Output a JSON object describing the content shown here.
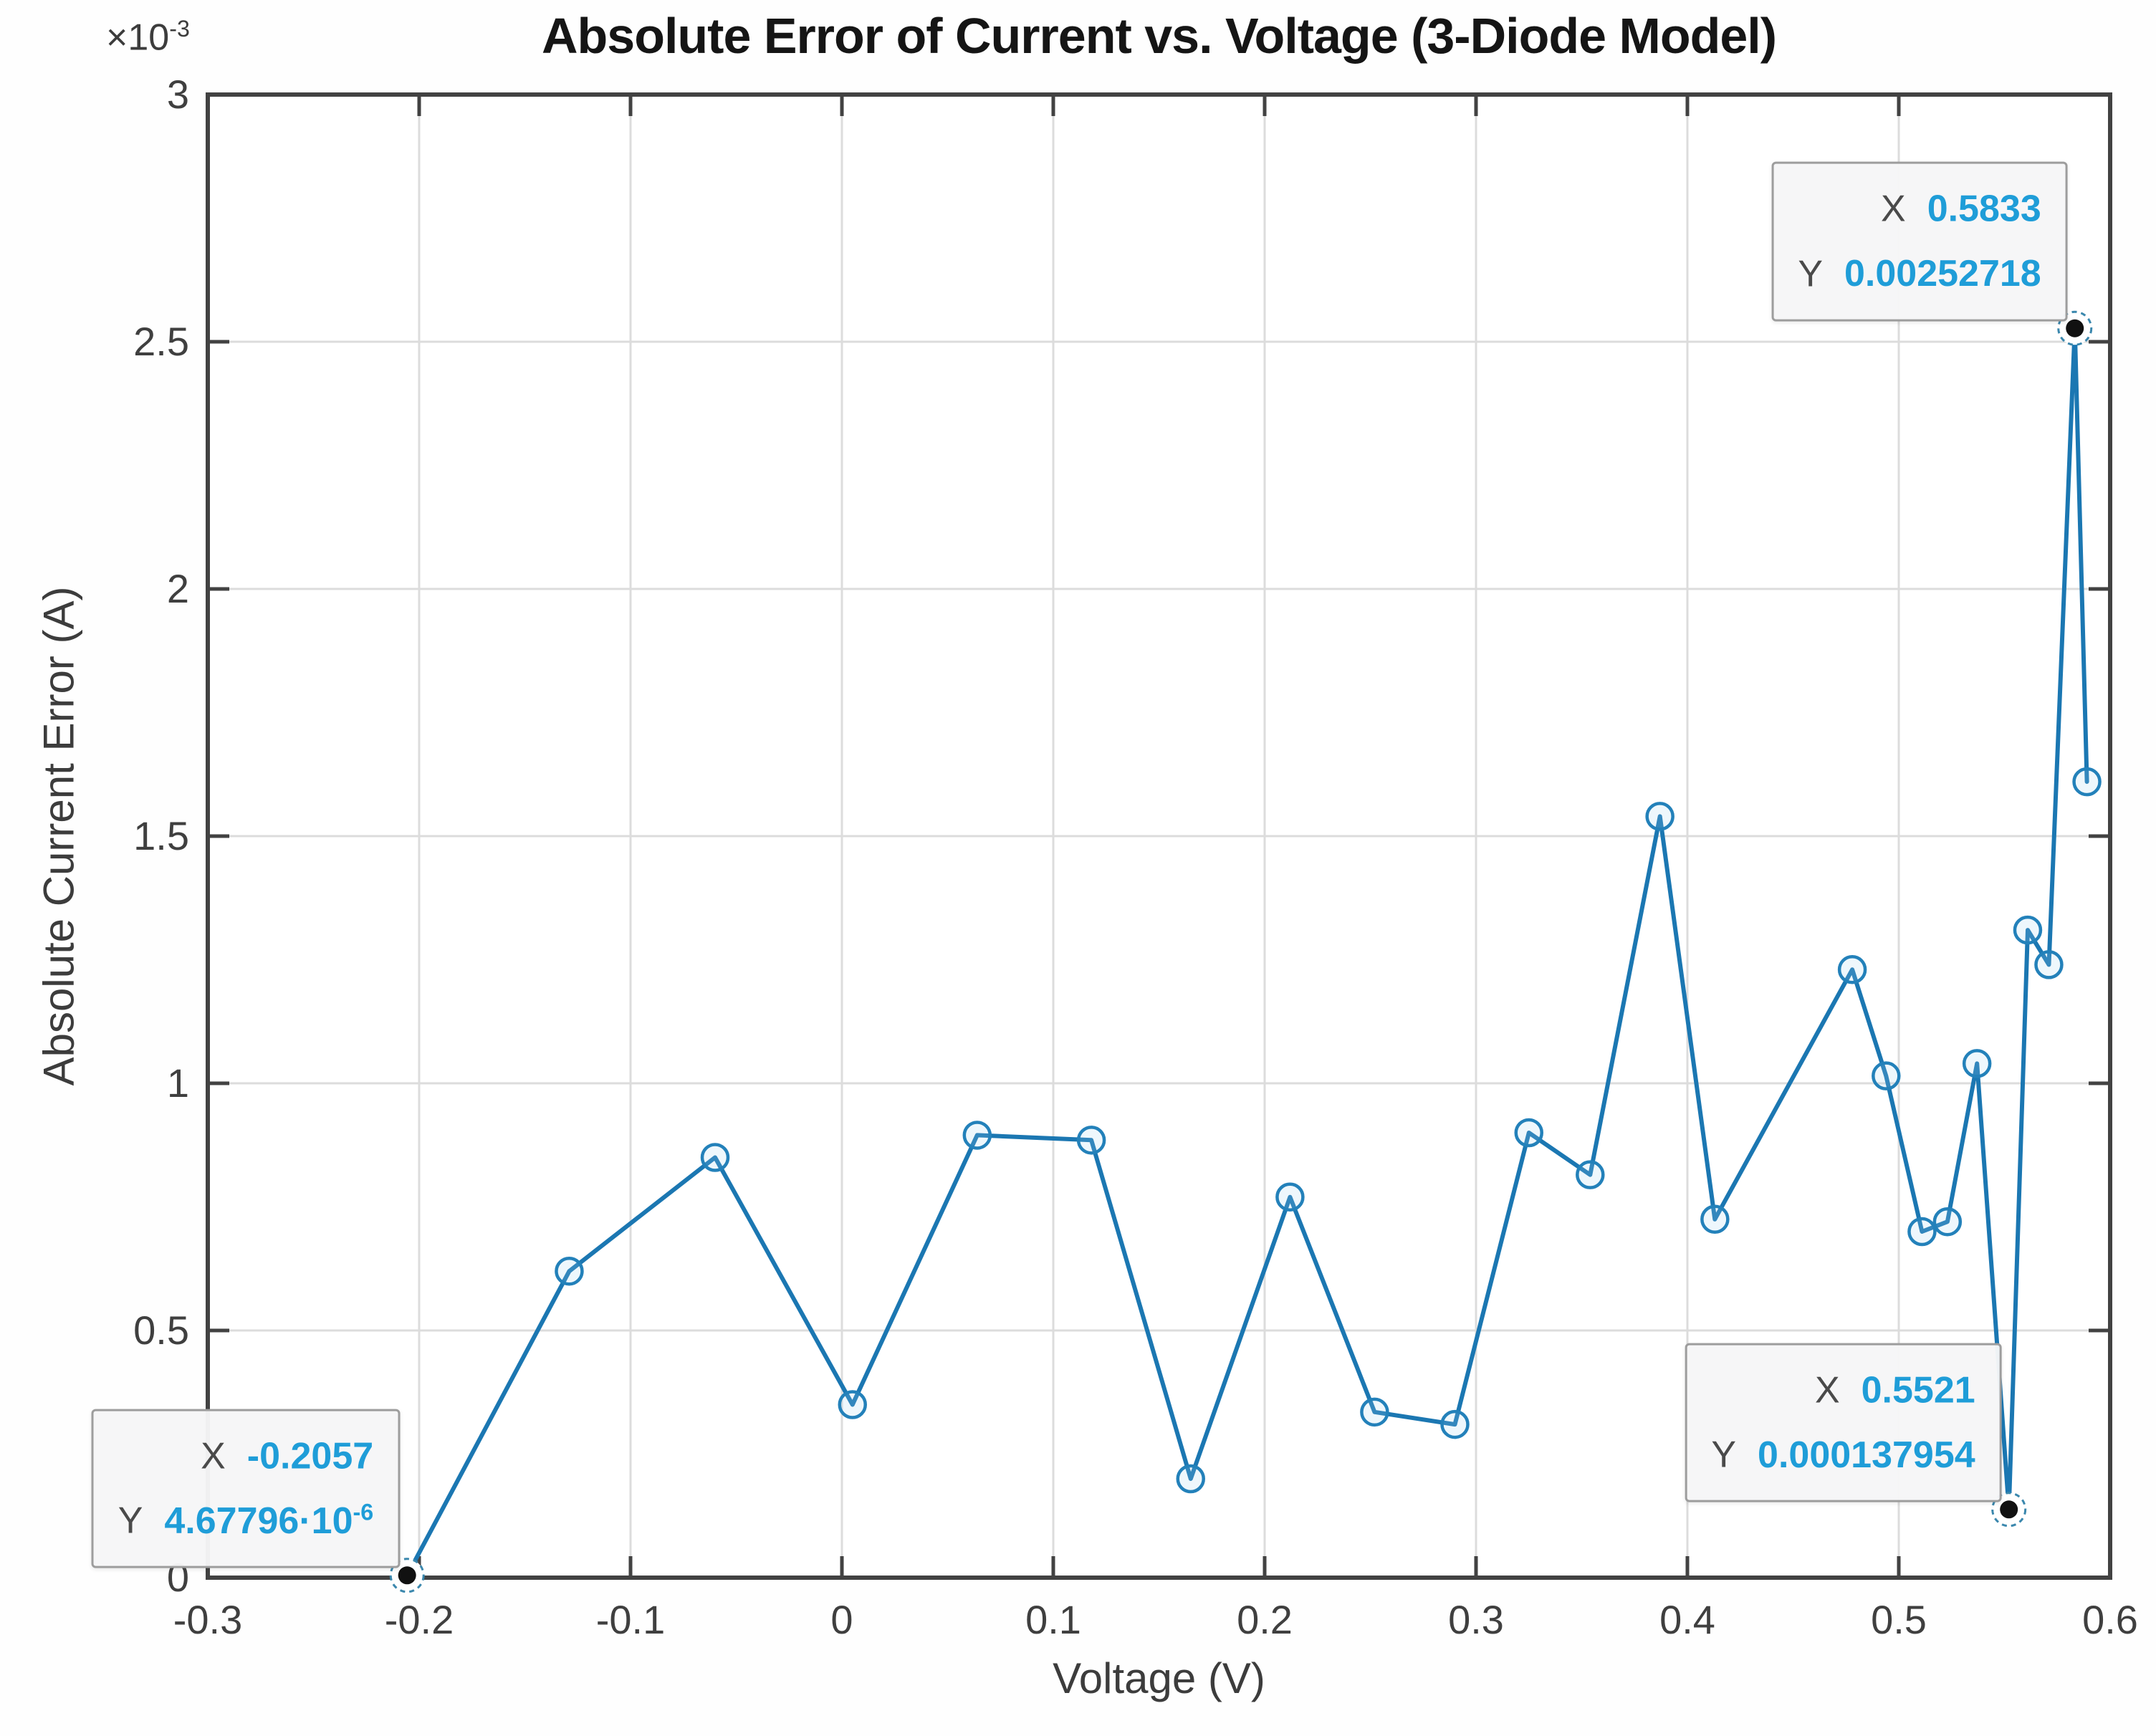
{
  "figure": {
    "title": "Absolute Error of Current vs. Voltage (3-Diode Model)",
    "xlabel": "Voltage (V)",
    "ylabel": "Absolute Current Error (A)",
    "y_multiplier_base": "×10",
    "y_multiplier_exp": "-3"
  },
  "colors": {
    "line": "#1b77b2",
    "marker_edge": "#2381ba",
    "grid": "#dcdcdc",
    "axis_box": "#424242",
    "tick_label": "#3f3f3f",
    "datatip_value": "#1f9dd8",
    "datatip_label": "#4a4a4a",
    "datatip_border": "#9d9d9d",
    "anchor_dot": "#111111"
  },
  "chart_data": {
    "type": "line",
    "title": "Absolute Error of Current vs. Voltage (3-Diode Model)",
    "xlabel": "Voltage (V)",
    "ylabel": "Absolute Current Error (A)",
    "xlim": [
      -0.3,
      0.6
    ],
    "ylim": [
      0,
      0.003
    ],
    "grid": true,
    "marker": "circle",
    "x_ticks": [
      -0.3,
      -0.2,
      -0.1,
      0,
      0.1,
      0.2,
      0.3,
      0.4,
      0.5,
      0.6
    ],
    "x_tick_labels": [
      "-0.3",
      "-0.2",
      "-0.1",
      "0",
      "0.1",
      "0.2",
      "0.3",
      "0.4",
      "0.5",
      "0.6"
    ],
    "y_ticks": [
      0,
      0.0005,
      0.001,
      0.0015,
      0.002,
      0.0025,
      0.003
    ],
    "y_tick_labels": [
      "0",
      "0.5",
      "1",
      "1.5",
      "2",
      "2.5",
      "3"
    ],
    "y_multiplier": "×10^-3",
    "x": [
      -0.2057,
      -0.129,
      -0.06,
      0.005,
      0.064,
      0.118,
      0.165,
      0.212,
      0.252,
      0.29,
      0.325,
      0.354,
      0.387,
      0.413,
      0.478,
      0.494,
      0.511,
      0.523,
      0.537,
      0.5521,
      0.561,
      0.571,
      0.5833,
      0.589
    ],
    "y": [
      4.67796e-06,
      0.00062,
      0.00085,
      0.00035,
      0.000895,
      0.000885,
      0.0002,
      0.00077,
      0.000335,
      0.00031,
      0.0009,
      0.000815,
      0.00154,
      0.000725,
      0.00123,
      0.001015,
      0.0007,
      0.00072,
      0.00104,
      0.000137954,
      0.00131,
      0.00124,
      0.00252718,
      0.00161
    ]
  },
  "datatips": [
    {
      "x_label": "X",
      "x_value": "0.5833",
      "y_label": "Y",
      "y_value": "0.00252718",
      "y_exp": "",
      "anchor_x": 0.5833,
      "anchor_y": 0.00252718
    },
    {
      "x_label": "X",
      "x_value": "-0.2057",
      "y_label": "Y",
      "y_value": "4.67796·10",
      "y_exp": "-6",
      "anchor_x": -0.2057,
      "anchor_y": 4.67796e-06
    },
    {
      "x_label": "X",
      "x_value": "0.5521",
      "y_label": "Y",
      "y_value": "0.000137954",
      "y_exp": "",
      "anchor_x": 0.5521,
      "anchor_y": 0.000137954
    }
  ]
}
